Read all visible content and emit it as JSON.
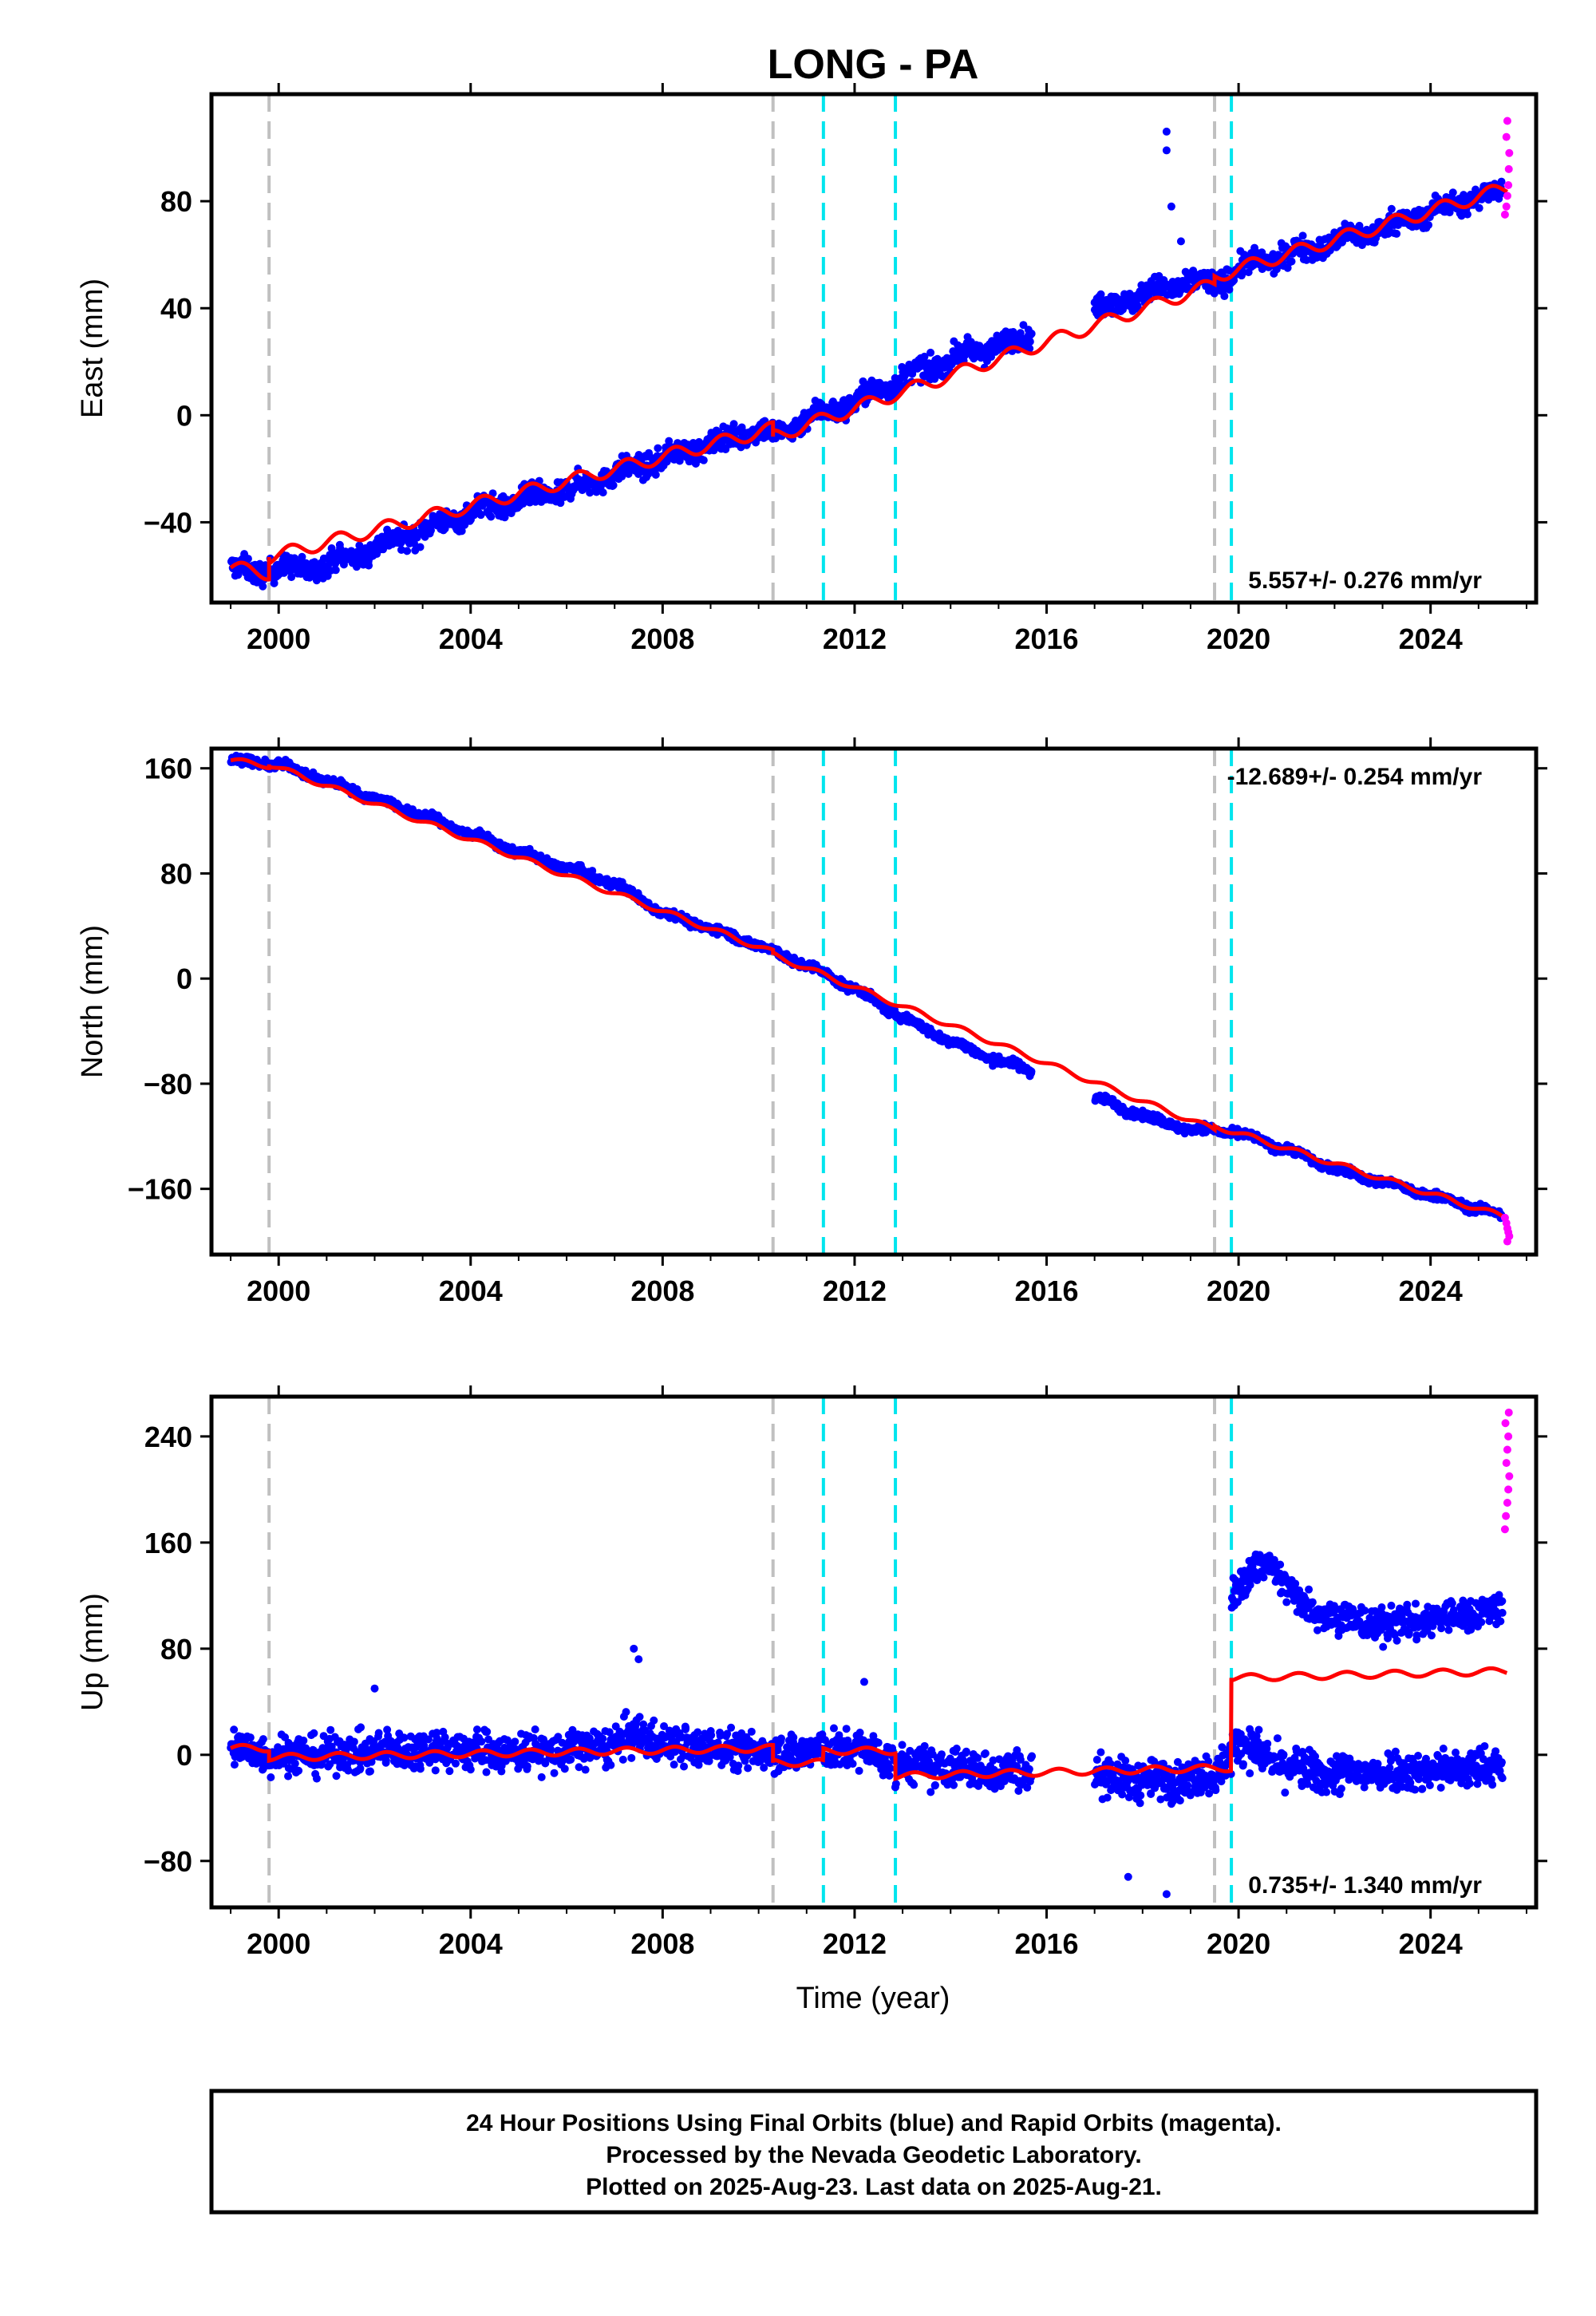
{
  "title": "LONG - PA",
  "xlabel": "Time (year)",
  "colors": {
    "final": "#0000ff",
    "rapid": "#ff00ff",
    "model": "#ff0000",
    "gray_event": "#c0c0c0",
    "cyan_event": "#00e5ee"
  },
  "footer": {
    "line1": "24 Hour Positions Using Final Orbits (blue) and Rapid Orbits (magenta).",
    "line2": "Processed by the Nevada Geodetic Laboratory.",
    "line3": "Plotted on 2025-Aug-23. Last data on 2025-Aug-21."
  },
  "chart_data": [
    {
      "type": "scatter",
      "panel": "east",
      "ylabel": "East (mm)",
      "xlim": [
        1998.6,
        2026.2
      ],
      "ylim": [
        -70,
        120
      ],
      "xticks": [
        "2000",
        "2004",
        "2008",
        "2012",
        "2016",
        "2020",
        "2024"
      ],
      "xtick_values": [
        2000,
        2004,
        2008,
        2012,
        2016,
        2020,
        2024
      ],
      "yticks": [
        "−40",
        "0",
        "40",
        "80"
      ],
      "ytick_values": [
        -40,
        0,
        40,
        80
      ],
      "rate_label": "5.557+/- 0.276 mm/yr",
      "rate_position": "bottom-right",
      "gray_events": [
        1999.8,
        2010.3,
        2019.5
      ],
      "cyan_events": [
        2011.35,
        2012.85,
        2019.85
      ],
      "final_series": {
        "name": "Final Orbits",
        "x": [
          1999.0,
          1999.5,
          1999.8,
          2000.5,
          2001.5,
          2002.5,
          2003.0,
          2004.0,
          2005.0,
          2006.0,
          2007.0,
          2008.0,
          2009.0,
          2010.0,
          2010.3,
          2011.0,
          2012.0,
          2013.0,
          2014.0,
          2015.0,
          2015.7,
          2017.0,
          2018.0,
          2019.0,
          2019.5,
          2020.0,
          2021.0,
          2022.0,
          2023.0,
          2024.0,
          2025.0,
          2025.5
        ],
        "y": [
          -57,
          -59,
          -57,
          -58,
          -53,
          -46,
          -43,
          -36,
          -32,
          -28,
          -22,
          -16,
          -11,
          -5,
          -8,
          -1,
          5,
          14,
          21,
          26,
          30,
          40,
          45,
          50,
          49,
          55,
          60,
          65,
          70,
          76,
          82,
          84
        ],
        "spread": 4
      },
      "outliers": {
        "x": [
          2018.5,
          2018.5,
          2018.6,
          2018.8
        ],
        "y": [
          106,
          99,
          78,
          65
        ]
      },
      "rapid_series": {
        "name": "Rapid Orbits",
        "x": [
          2025.55,
          2025.58,
          2025.6,
          2025.62,
          2025.63,
          2025.64,
          2025.58,
          2025.6
        ],
        "y": [
          75,
          78,
          82,
          86,
          92,
          98,
          104,
          110
        ]
      },
      "model": {
        "x": [
          1999.0,
          1999.8,
          1999.8,
          2010.3,
          2010.3,
          2019.5,
          2019.5,
          2025.6
        ],
        "y": [
          -57,
          -59,
          -53,
          -5,
          -8,
          49,
          52,
          85
        ],
        "seasonal_amplitude": 2.5
      }
    },
    {
      "type": "scatter",
      "panel": "north",
      "ylabel": "North (mm)",
      "xlim": [
        1998.6,
        2026.2
      ],
      "ylim": [
        -210,
        175
      ],
      "xticks": [
        "2000",
        "2004",
        "2008",
        "2012",
        "2016",
        "2020",
        "2024"
      ],
      "xtick_values": [
        2000,
        2004,
        2008,
        2012,
        2016,
        2020,
        2024
      ],
      "yticks": [
        "−160",
        "−80",
        "0",
        "80",
        "160"
      ],
      "ytick_values": [
        -160,
        -80,
        0,
        80,
        160
      ],
      "rate_label": "-12.689+/- 0.254 mm/yr",
      "rate_position": "top-right",
      "gray_events": [
        1999.8,
        2010.3,
        2019.5
      ],
      "cyan_events": [
        2011.35,
        2012.85,
        2019.85
      ],
      "final_series": {
        "name": "Final Orbits",
        "x": [
          1999.0,
          2000.0,
          2001.0,
          2002.0,
          2003.0,
          2004.0,
          2005.0,
          2006.0,
          2007.0,
          2008.0,
          2009.0,
          2010.0,
          2011.0,
          2012.0,
          2013.0,
          2014.0,
          2015.0,
          2015.7,
          2017.0,
          2018.0,
          2019.0,
          2019.5,
          2020.0,
          2021.0,
          2022.0,
          2023.0,
          2024.0,
          2025.0,
          2025.5
        ],
        "y": [
          166,
          163,
          150,
          137,
          124,
          110,
          96,
          84,
          72,
          50,
          38,
          25,
          10,
          -8,
          -30,
          -48,
          -63,
          -70,
          -90,
          -105,
          -115,
          -115,
          -118,
          -130,
          -145,
          -155,
          -165,
          -175,
          -181
        ],
        "spread": 3
      },
      "outliers": {
        "x": [],
        "y": []
      },
      "rapid_series": {
        "name": "Rapid Orbits",
        "x": [
          2025.55,
          2025.58,
          2025.6,
          2025.62,
          2025.64,
          2025.6
        ],
        "y": [
          -182,
          -186,
          -190,
          -193,
          -196,
          -200
        ]
      },
      "model": {
        "x": [
          1999.0,
          1999.8,
          1999.8,
          2010.3,
          2010.3,
          2019.5,
          2019.5,
          2025.6
        ],
        "y": [
          166,
          162,
          163,
          20,
          18,
          -115,
          -112,
          -182
        ],
        "seasonal_amplitude": 2
      }
    },
    {
      "type": "scatter",
      "panel": "up",
      "ylabel": "Up (mm)",
      "xlim": [
        1998.6,
        2026.2
      ],
      "ylim": [
        -115,
        270
      ],
      "xticks": [
        "2000",
        "2004",
        "2008",
        "2012",
        "2016",
        "2020",
        "2024"
      ],
      "xtick_values": [
        2000,
        2004,
        2008,
        2012,
        2016,
        2020,
        2024
      ],
      "yticks": [
        "−80",
        "0",
        "80",
        "160",
        "240"
      ],
      "ytick_values": [
        -80,
        0,
        80,
        160,
        240
      ],
      "rate_label": "0.735+/- 1.340 mm/yr",
      "rate_position": "bottom-right",
      "gray_events": [
        1999.8,
        2010.3,
        2019.5
      ],
      "cyan_events": [
        2011.35,
        2012.85,
        2019.85
      ],
      "final_series": {
        "name": "Final Orbits",
        "x": [
          1999.0,
          2000.0,
          2001.0,
          2002.0,
          2003.0,
          2004.0,
          2005.0,
          2006.0,
          2007.0,
          2007.5,
          2008.0,
          2009.0,
          2010.0,
          2011.0,
          2012.0,
          2013.0,
          2014.0,
          2015.0,
          2015.7,
          2017.0,
          2018.0,
          2019.0,
          2019.5,
          2020.0,
          2021.0,
          2022.0,
          2023.0,
          2024.0,
          2025.0,
          2025.5
        ],
        "y": [
          5,
          0,
          0,
          2,
          5,
          3,
          2,
          2,
          8,
          15,
          8,
          5,
          3,
          2,
          5,
          -8,
          -10,
          -12,
          -12,
          -15,
          -20,
          -18,
          -15,
          10,
          -10,
          -15,
          -12,
          -12,
          -10,
          -10
        ],
        "spread": 14
      },
      "branch_series": {
        "name": "Final Orbits (upper branch)",
        "x": [
          2019.85,
          2020.2,
          2020.6,
          2021.0,
          2021.5,
          2022.0,
          2022.5,
          2023.0,
          2023.5,
          2024.0,
          2024.5,
          2025.0,
          2025.5
        ],
        "y": [
          120,
          135,
          148,
          125,
          110,
          105,
          100,
          98,
          100,
          102,
          105,
          108,
          110
        ],
        "spread": 12
      },
      "outliers": {
        "x": [
          2007.4,
          2007.5,
          2002.0,
          2012.2,
          2017.7,
          2018.5
        ],
        "y": [
          80,
          72,
          50,
          55,
          -92,
          -105
        ]
      },
      "rapid_series": {
        "name": "Rapid Orbits",
        "x": [
          2025.55,
          2025.57,
          2025.6,
          2025.62,
          2025.64,
          2025.58,
          2025.6,
          2025.62,
          2025.56,
          2025.63
        ],
        "y": [
          170,
          180,
          190,
          200,
          210,
          220,
          230,
          240,
          250,
          258
        ]
      },
      "model": {
        "x": [
          1999.0,
          1999.8,
          1999.8,
          2010.3,
          2010.3,
          2011.35,
          2011.35,
          2012.85,
          2012.85,
          2019.5,
          2019.5,
          2019.85,
          2019.85,
          2025.6
        ],
        "y": [
          5,
          5,
          -2,
          5,
          -6,
          -6,
          3,
          3,
          -16,
          -10,
          -10,
          -10,
          58,
          63
        ],
        "seasonal_amplitude": 2.5
      }
    }
  ]
}
